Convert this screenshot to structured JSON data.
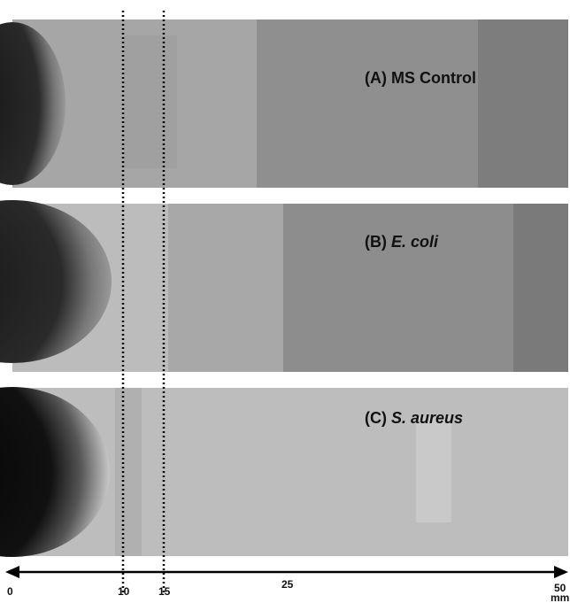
{
  "panels": [
    {
      "prefix": "(A) MS Control",
      "organism": null
    },
    {
      "prefix": "(B)",
      "organism": "E. coli"
    },
    {
      "prefix": "(C)",
      "organism": "S. aureus"
    }
  ],
  "axis": {
    "ticks": [
      "0",
      "10",
      "15",
      "25",
      "50"
    ],
    "unit": "mm"
  }
}
